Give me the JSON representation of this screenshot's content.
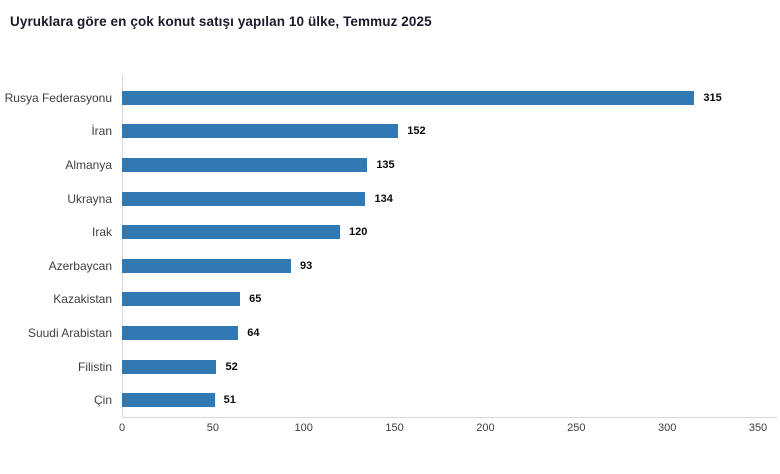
{
  "title": "Uyruklara göre en çok konut satışı yapılan 10 ülke, Temmuz 2025",
  "colors": {
    "bar": "#3379b1",
    "axis_line": "#d9d9d9",
    "title_text": "#1a1a2b",
    "category_text": "#3f3f3f",
    "value_text": "#0a0a0a",
    "tick_text": "#404040"
  },
  "chart_data": {
    "type": "bar",
    "orientation": "horizontal",
    "title": "Uyruklara göre en çok konut satışı yapılan 10 ülke, Temmuz 2025",
    "categories": [
      "Rusya Federasyonu",
      "İran",
      "Almanya",
      "Ukrayna",
      "Irak",
      "Azerbaycan",
      "Kazakistan",
      "Suudi Arabistan",
      "Filistin",
      "Çin"
    ],
    "values": [
      315,
      152,
      135,
      134,
      120,
      93,
      65,
      64,
      52,
      51
    ],
    "xlabel": "",
    "ylabel": "",
    "xlim": [
      0,
      350
    ],
    "xticks": [
      0,
      50,
      100,
      150,
      200,
      250,
      300,
      350
    ],
    "grid": false,
    "legend": false,
    "data_labels": true
  }
}
